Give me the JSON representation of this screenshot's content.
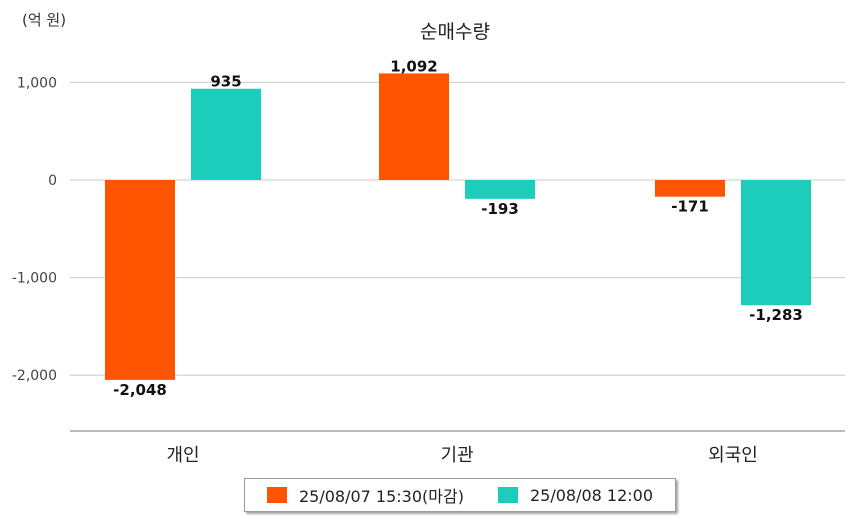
{
  "chart_data": {
    "type": "bar",
    "title": "순매수량",
    "unit_label": "(억 원)",
    "categories": [
      "개인",
      "기관",
      "외국인"
    ],
    "series": [
      {
        "name": "25/08/07 15:30(마감)",
        "color": "#ff5500",
        "values": [
          -2048,
          1092,
          -171
        ],
        "labels": [
          "-2,048",
          "1,092",
          "-171"
        ]
      },
      {
        "name": "25/08/08 12:00",
        "color": "#1dcdbb",
        "values": [
          935,
          -193,
          -1283
        ],
        "labels": [
          "935",
          "-193",
          "-1,283"
        ]
      }
    ],
    "y_ticks": [
      1000,
      0,
      -1000,
      -2000
    ],
    "y_tick_labels": [
      "1,000",
      "0",
      "-1,000",
      "-2,000"
    ],
    "ylim": [
      -2560,
      1000
    ],
    "grid": true,
    "legend_position": "bottom"
  }
}
